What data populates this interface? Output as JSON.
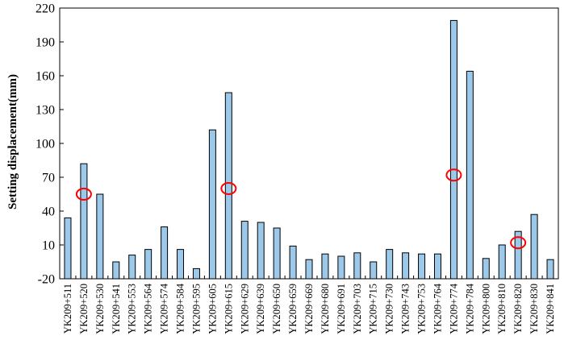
{
  "chart_data": {
    "type": "bar",
    "title": "",
    "xlabel": "",
    "ylabel": "Setting displacement(mm)",
    "ylim": [
      -20,
      220
    ],
    "yticks": [
      -20,
      10,
      40,
      70,
      100,
      130,
      160,
      190,
      220
    ],
    "grid": false,
    "legend": "none",
    "bar_color": "#9cc8ea",
    "bar_edge_color": "#000000",
    "marker_color": "#ff0000",
    "categories": [
      "YK209+511",
      "YK209+520",
      "YK209+530",
      "YK209+541",
      "YK209+553",
      "YK209+564",
      "YK209+574",
      "YK209+584",
      "YK209+595",
      "YK209+605",
      "YK209+615",
      "YK209+629",
      "YK209+639",
      "YK209+650",
      "YK209+659",
      "YK209+669",
      "YK209+680",
      "YK209+691",
      "YK209+703",
      "YK209+715",
      "YK209+730",
      "YK209+743",
      "YK209+753",
      "YK209+764",
      "YK209+774",
      "YK209+784",
      "YK209+800",
      "YK209+810",
      "YK209+820",
      "YK209+830",
      "YK209+841"
    ],
    "values": [
      34,
      82,
      55,
      -5,
      1,
      6,
      26,
      6,
      -11,
      112,
      145,
      31,
      30,
      25,
      9,
      -3,
      2,
      0,
      3,
      -5,
      6,
      3,
      2,
      2,
      209,
      164,
      -2,
      10,
      22,
      37,
      -3
    ],
    "markers": [
      {
        "category": "YK209+520",
        "y": 55
      },
      {
        "category": "YK209+615",
        "y": 60
      },
      {
        "category": "YK209+774",
        "y": 72
      },
      {
        "category": "YK209+820",
        "y": 12
      }
    ]
  }
}
